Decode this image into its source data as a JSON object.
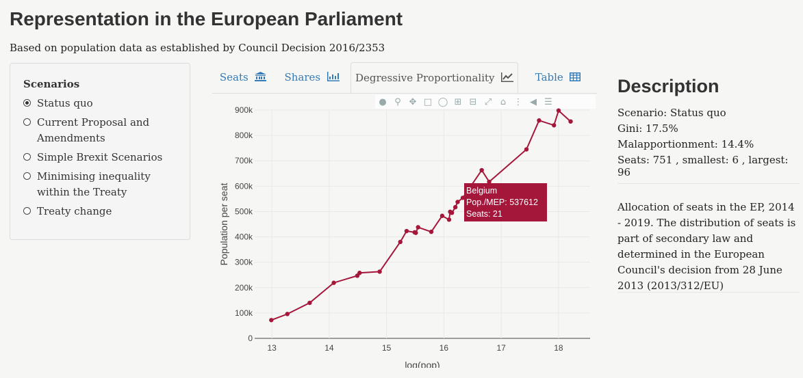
{
  "header": {
    "title": "Representation in the European Parliament",
    "subtitle": "Based on population data as established by Council Decision 2016/2353"
  },
  "sidebar": {
    "heading": "Scenarios",
    "options": [
      {
        "label": "Status quo",
        "selected": true
      },
      {
        "label": "Current Proposal and Amendments",
        "selected": false
      },
      {
        "label": "Simple Brexit Scenarios",
        "selected": false
      },
      {
        "label": "Minimising inequality within the Treaty",
        "selected": false
      },
      {
        "label": "Treaty change",
        "selected": false
      }
    ]
  },
  "tabs": [
    {
      "label": "Seats",
      "icon": "bank-icon"
    },
    {
      "label": "Shares",
      "icon": "bar-chart-icon"
    },
    {
      "label": "Degressive Proportionality",
      "icon": "line-chart-icon",
      "active": true
    },
    {
      "label": "Table",
      "icon": "table-icon"
    }
  ],
  "modebar": [
    "camera-icon",
    "zoom-icon",
    "pan-icon",
    "box-select-icon",
    "lasso-select-icon",
    "zoom-in-icon",
    "zoom-out-icon",
    "autoscale-icon",
    "reset-axes-icon",
    "spike-lines-icon",
    "hover-closest-icon",
    "hover-compare-icon"
  ],
  "tooltip": {
    "country": "Belgium",
    "pop_line": "Pop./MEP: 537612",
    "seats_line": "Seats: 21"
  },
  "chart_data": {
    "type": "line",
    "xlabel": "log(pop)",
    "ylabel": "Population per seat",
    "xlim": [
      12.7,
      18.55
    ],
    "ylim": [
      0,
      900000
    ],
    "xticks": [
      13,
      14,
      15,
      16,
      17,
      18
    ],
    "yticks": [
      0,
      100000,
      200000,
      300000,
      400000,
      500000,
      600000,
      700000,
      800000,
      900000
    ],
    "ytick_labels": [
      "0",
      "100k",
      "200k",
      "300k",
      "400k",
      "500k",
      "600k",
      "700k",
      "800k",
      "900k"
    ],
    "grid": true,
    "color": "#a4163a",
    "series": [
      {
        "x": [
          12.99,
          13.27,
          13.66,
          14.08,
          14.49,
          14.53,
          14.88,
          15.24,
          15.35,
          15.49,
          15.51,
          15.55,
          15.78,
          15.97,
          16.09,
          16.11,
          16.14,
          16.2,
          16.24,
          16.33,
          16.66,
          16.79,
          17.44,
          17.66,
          17.92,
          18.0,
          18.21
        ],
        "y": [
          72000,
          96000,
          140000,
          219000,
          247000,
          258000,
          263000,
          380000,
          423000,
          418000,
          416000,
          438000,
          420000,
          483000,
          468000,
          499000,
          495000,
          517000,
          537612,
          554000,
          663000,
          617000,
          745000,
          859000,
          840000,
          898000,
          855000
        ]
      }
    ]
  },
  "description": {
    "title": "Description",
    "scenario": "Scenario: Status quo",
    "gini": "Gini: 17.5%",
    "malapportionment": "Malapportionment: 14.4%",
    "seats": "Seats: 751 , smallest: 6 , largest: 96",
    "paragraph": "Allocation of seats in the EP, 2014 - 2019. The distribution of seats is part of secondary law and determined in the European Council's decision from 28 June 2013 (2013/312/EU)"
  }
}
